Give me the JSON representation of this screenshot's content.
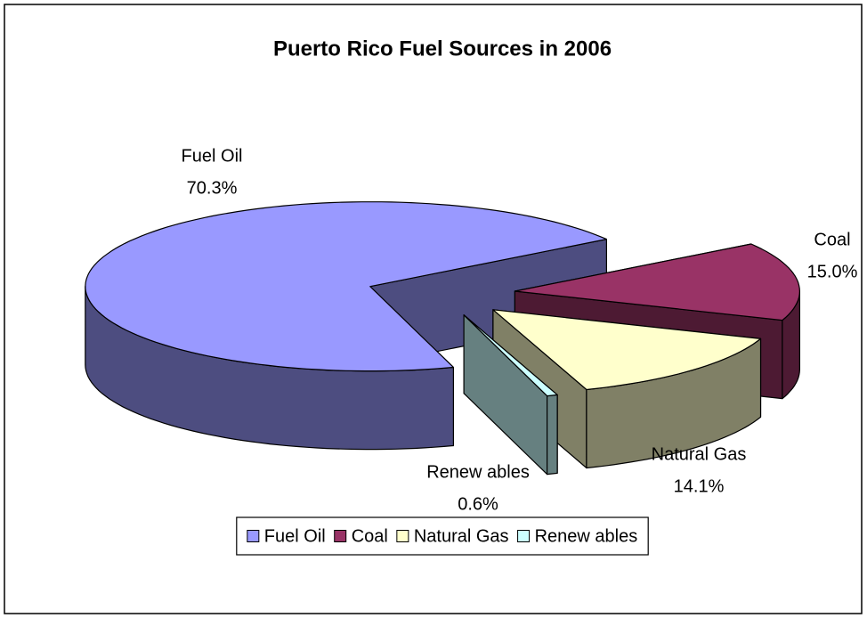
{
  "chart_data": {
    "type": "pie3d",
    "title": "Puerto Rico Fuel Sources in 2006",
    "categories": [
      "Fuel Oil",
      "Coal",
      "Natural Gas",
      "Renew ables"
    ],
    "values": [
      70.3,
      15.0,
      14.1,
      0.6
    ],
    "value_labels": [
      "70.3%",
      "15.0%",
      "14.1%",
      "0.6%"
    ],
    "colors": [
      "#9999FF",
      "#993366",
      "#FFFFCC",
      "#CCFFFF"
    ],
    "legend": "bottom"
  }
}
